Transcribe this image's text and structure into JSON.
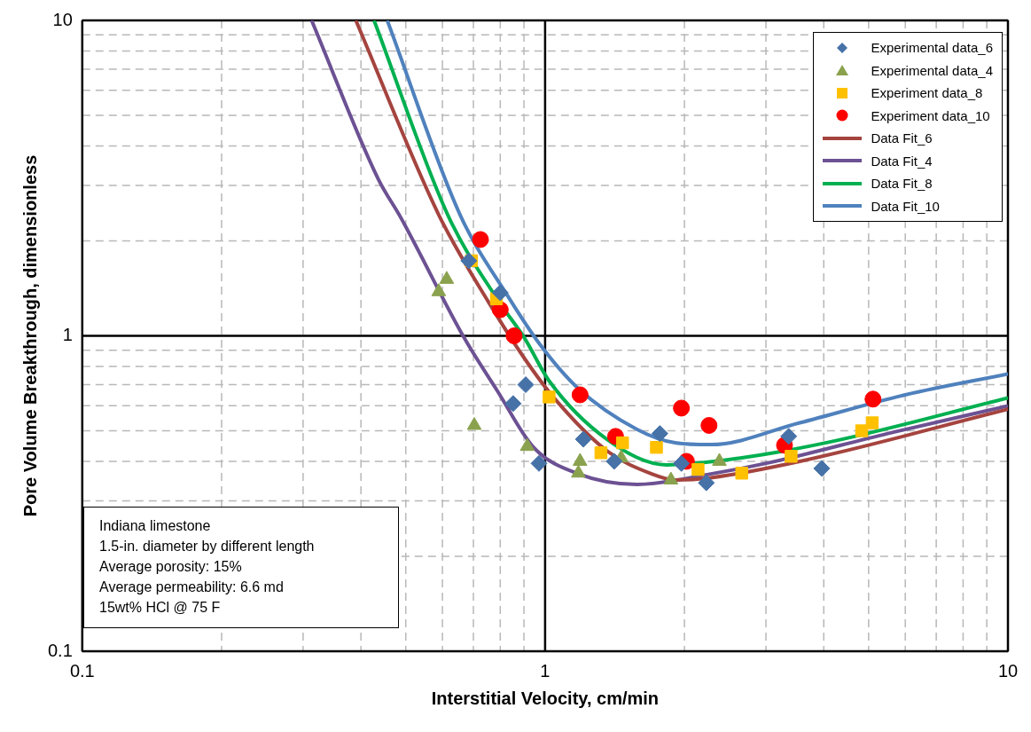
{
  "chart_data": {
    "type": "scatter",
    "xlabel": "Interstitial Velocity, cm/min",
    "ylabel": "Pore Volume Breakthrough, dimensionless",
    "log": "xy",
    "xlim": [
      0.1,
      10
    ],
    "ylim": [
      0.1,
      10
    ],
    "xticks": [
      0.1,
      1,
      10
    ],
    "yticks": [
      0.1,
      1,
      10
    ],
    "grid": true,
    "legend": "top right",
    "annotations": [
      "Indiana limestone",
      "1.5-in. diameter by different length",
      "Average porosity: 15%",
      "Average permeability: 6.6 md",
      "15wt% HCl @ 75 F"
    ],
    "series": [
      {
        "name": "Experimental data_6",
        "type": "scatter",
        "marker": "diamond",
        "color": "#4672a8",
        "x": [
          0.684,
          0.8,
          0.853,
          0.908,
          0.97,
          1.21,
          1.41,
          1.77,
          1.97,
          2.23,
          3.36,
          3.96
        ],
        "values": [
          1.73,
          1.37,
          0.61,
          0.7,
          0.394,
          0.47,
          0.4,
          0.49,
          0.394,
          0.342,
          0.48,
          0.38
        ]
      },
      {
        "name": "Experimental data_4",
        "type": "scatter",
        "marker": "triangle",
        "color": "#8aa24e",
        "x": [
          0.589,
          0.613,
          0.703,
          0.915,
          1.19,
          1.18,
          1.46,
          1.87,
          2.38
        ],
        "values": [
          1.38,
          1.51,
          0.52,
          0.446,
          0.4,
          0.367,
          0.41,
          0.349,
          0.4
        ]
      },
      {
        "name": "Experiment data_8",
        "type": "scatter",
        "marker": "square",
        "color": "#ffc000",
        "x": [
          0.693,
          0.785,
          1.02,
          1.32,
          1.47,
          1.74,
          2.14,
          2.66,
          3.4,
          4.83,
          5.09
        ],
        "values": [
          1.73,
          1.31,
          0.64,
          0.426,
          0.458,
          0.443,
          0.377,
          0.367,
          0.415,
          0.5,
          0.53
        ]
      },
      {
        "name": "Experiment data_10",
        "type": "scatter",
        "marker": "circle",
        "color": "#ff0000",
        "x": [
          0.725,
          0.8,
          0.857,
          1.19,
          1.42,
          1.97,
          2.02,
          2.26,
          3.29,
          5.11
        ],
        "values": [
          2.02,
          1.21,
          1.0,
          0.65,
          0.48,
          0.59,
          0.4,
          0.52,
          0.45,
          0.63
        ]
      },
      {
        "name": "Data Fit_6",
        "type": "line",
        "marker": "none",
        "line_style": "solid",
        "color": "#a5443f",
        "x": [
          0.39,
          0.589,
          0.757,
          0.904,
          1.045,
          1.36,
          1.7,
          1.91,
          2.28,
          3.55,
          10
        ],
        "values": [
          10,
          2.42,
          1.27,
          0.845,
          0.636,
          0.432,
          0.365,
          0.349,
          0.355,
          0.4,
          0.585
        ]
      },
      {
        "name": "Data Fit_4",
        "type": "line",
        "marker": "none",
        "line_style": "solid",
        "color": "#6c5193",
        "x": [
          0.313,
          0.436,
          0.487,
          0.67,
          0.79,
          0.944,
          1.18,
          1.58,
          2.28,
          3.07,
          5.5,
          10
        ],
        "values": [
          10,
          3.14,
          2.38,
          0.98,
          0.666,
          0.443,
          0.365,
          0.338,
          0.365,
          0.397,
          0.49,
          0.6
        ]
      },
      {
        "name": "Data Fit_8",
        "type": "line",
        "marker": "none",
        "line_style": "solid",
        "color": "#00b050",
        "x": [
          0.427,
          0.616,
          0.79,
          0.904,
          1.02,
          1.36,
          1.83,
          2.64,
          4.1,
          10
        ],
        "values": [
          10,
          2.42,
          1.3,
          0.98,
          0.72,
          0.47,
          0.39,
          0.41,
          0.46,
          0.636
        ]
      },
      {
        "name": "Data Fit_10",
        "type": "line",
        "marker": "none",
        "line_style": "solid",
        "color": "#4f81bd",
        "x": [
          0.456,
          0.655,
          0.827,
          0.974,
          1.18,
          1.58,
          1.91,
          2.28,
          3.55,
          6,
          10
        ],
        "values": [
          10,
          2.42,
          1.35,
          0.94,
          0.68,
          0.505,
          0.458,
          0.452,
          0.53,
          0.65,
          0.757
        ]
      }
    ]
  }
}
